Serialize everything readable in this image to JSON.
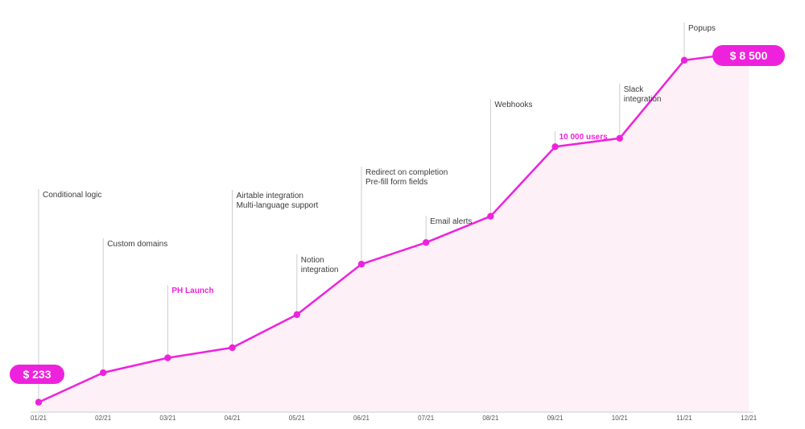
{
  "chart_data": {
    "type": "line",
    "x": [
      "01/21",
      "02/21",
      "03/21",
      "04/21",
      "05/21",
      "06/21",
      "07/21",
      "08/21",
      "09/21",
      "10/21",
      "11/21",
      "12/21"
    ],
    "values": [
      233,
      930,
      1280,
      1520,
      2300,
      3490,
      4000,
      4620,
      6260,
      6460,
      8300,
      8500
    ],
    "ylim": [
      0,
      9000
    ],
    "grid": false,
    "colors": {
      "line": "#ee22dd",
      "area": "#fdf1f7",
      "axis": "#cccccc",
      "guide": "#cccccc",
      "highlight_text": "#ee22dd",
      "badge_fill": "#ee22dd"
    },
    "value_badges": [
      {
        "index": 0,
        "label": "$ 233"
      },
      {
        "index": 11,
        "label": "$ 8 500"
      }
    ],
    "annotations": [
      {
        "index": 0,
        "lines": [
          "Conditional logic"
        ],
        "highlight": false
      },
      {
        "index": 1,
        "lines": [
          "Custom domains"
        ],
        "highlight": false
      },
      {
        "index": 2,
        "lines": [
          "PH Launch"
        ],
        "highlight": true
      },
      {
        "index": 3,
        "lines": [
          "Airtable integration",
          "Multi-language support"
        ],
        "highlight": false
      },
      {
        "index": 4,
        "lines": [
          "Notion",
          "integration"
        ],
        "highlight": false
      },
      {
        "index": 5,
        "lines": [
          "Redirect on completion",
          "Pre-fill form fields"
        ],
        "highlight": false
      },
      {
        "index": 6,
        "lines": [
          "Email alerts"
        ],
        "highlight": false
      },
      {
        "index": 7,
        "lines": [
          "Webhooks"
        ],
        "highlight": false
      },
      {
        "index": 8,
        "lines": [
          "10 000 users"
        ],
        "highlight": true
      },
      {
        "index": 9,
        "lines": [
          "Slack",
          "integration"
        ],
        "highlight": false
      },
      {
        "index": 10,
        "lines": [
          "Popups"
        ],
        "highlight": false
      }
    ]
  }
}
